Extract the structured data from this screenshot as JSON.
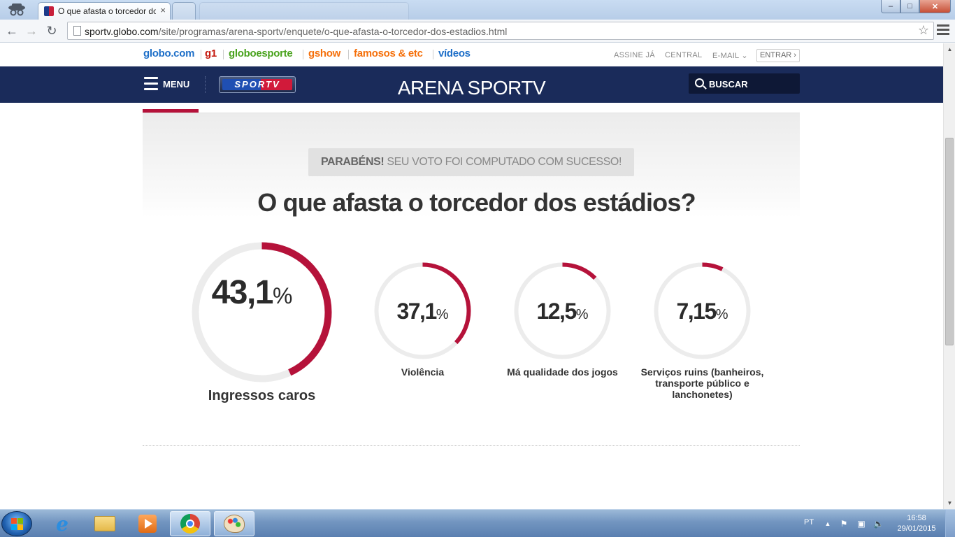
{
  "browser": {
    "active_tab_title": "O que afasta o torcedor dos estádios",
    "tab_close": "×",
    "url_host": "sportv.globo.com",
    "url_path": "/site/programas/arena-sportv/enquete/o-que-afasta-o-torcedor-dos-estadios.html",
    "window_controls": {
      "min": "–",
      "max": "□",
      "close": "✕"
    }
  },
  "globo_bar": {
    "links": [
      {
        "label": "globo.com",
        "color": "#1e6fc8"
      },
      {
        "label": "g1",
        "color": "#c4170c"
      },
      {
        "label": "globoesporte",
        "color": "#4aa31e"
      },
      {
        "label": "gshow",
        "color": "#f5700b"
      },
      {
        "label": "famosos & etc",
        "color": "#f5700b"
      },
      {
        "label": "vídeos",
        "color": "#1e6fc8"
      }
    ],
    "assine": "ASSINE JÁ",
    "central": "CENTRAL",
    "email": "E-MAIL",
    "entrar": "ENTRAR"
  },
  "header": {
    "menu_label": "MENU",
    "logo_text": "SPORTV",
    "program_title": "ARENA SPORTV",
    "search_label": "BUSCAR"
  },
  "poll": {
    "success_bold": "PARABÉNS!",
    "success_text": "SEU VOTO FOI COMPUTADO COM SUCESSO!",
    "question": "O que afasta o torcedor dos estádios?",
    "accent_color": "#b5123a",
    "track_color": "#ececec",
    "options": [
      {
        "value": "43,1",
        "unit": "%",
        "fraction": 0.431,
        "label": "Ingressos caros"
      },
      {
        "value": "37,1",
        "unit": "%",
        "fraction": 0.371,
        "label": "Violência"
      },
      {
        "value": "12,5",
        "unit": "%",
        "fraction": 0.125,
        "label": "Má qualidade dos jogos"
      },
      {
        "value": "7,15",
        "unit": "%",
        "fraction": 0.0715,
        "label": "Serviços ruins (banheiros, transporte público e lanchonetes)"
      }
    ]
  },
  "taskbar": {
    "language": "PT",
    "time": "16:58",
    "date": "29/01/2015"
  }
}
